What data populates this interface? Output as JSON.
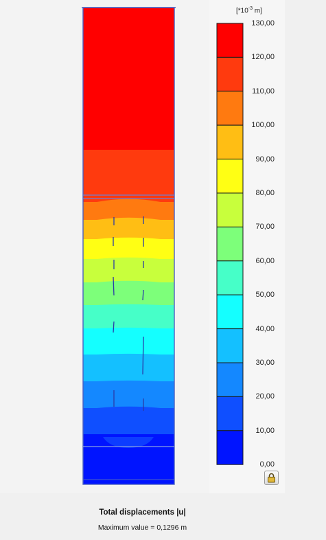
{
  "legend": {
    "unit_prefix": "[*10",
    "unit_exponent": "-3",
    "unit_suffix": " m]",
    "ticks": [
      "130,00",
      "120,00",
      "110,00",
      "100,00",
      "90,00",
      "80,00",
      "70,00",
      "60,00",
      "50,00",
      "40,00",
      "30,00",
      "20,00",
      "10,00",
      "0,00"
    ],
    "colors": [
      "#ff0000",
      "#ff3a0e",
      "#ff7a10",
      "#ffbe14",
      "#ffff14",
      "#c8ff3c",
      "#7dff7a",
      "#46ffc8",
      "#14ffff",
      "#14c0ff",
      "#1488ff",
      "#0f4fff",
      "#0014ff"
    ]
  },
  "footer": {
    "title": "Total displacements |u|",
    "max_value_label": "Maximum value = 0,1296 m"
  },
  "chart_data": {
    "type": "heatmap",
    "title": "Total displacements |u|",
    "unit": "[*10-3 m]",
    "min": 0.0,
    "max": 130.0,
    "step": 10.0,
    "maximum_value_m": 0.1296,
    "levels": [
      0,
      10,
      20,
      30,
      40,
      50,
      60,
      70,
      80,
      90,
      100,
      110,
      120,
      130
    ],
    "model_bands_top_to_bottom": [
      125,
      115,
      105,
      95,
      85,
      75,
      65,
      55,
      45,
      35,
      25,
      15,
      5
    ]
  }
}
